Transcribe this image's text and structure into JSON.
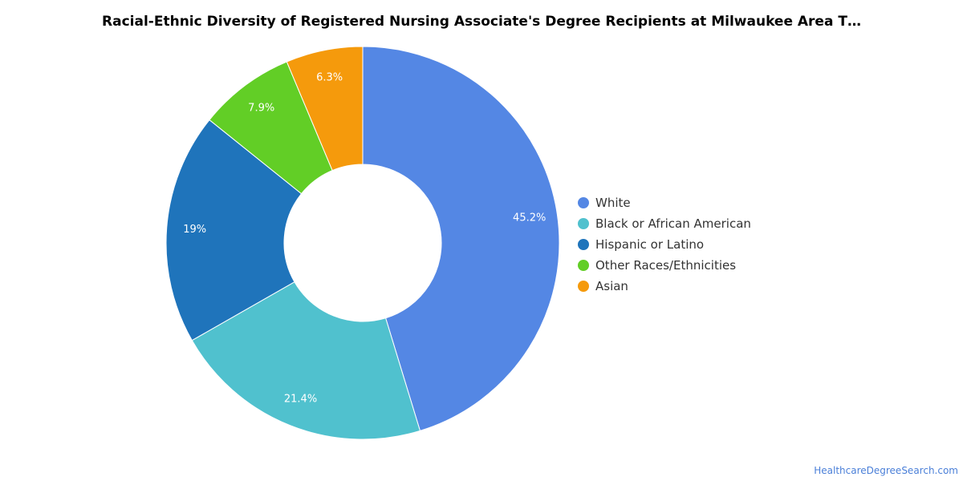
{
  "source_link": "HealthcareDegreeSearch.com",
  "chart_data": {
    "type": "pie",
    "variant": "donut",
    "title": "Racial-Ethnic Diversity of Registered Nursing Associate's Degree Recipients at Milwaukee Area T…",
    "legend_position": "right",
    "series": [
      {
        "name": "White",
        "value": 45.2,
        "label": "45.2%",
        "color": "#5487e4"
      },
      {
        "name": "Black or African American",
        "value": 21.4,
        "label": "21.4%",
        "color": "#50c1ce"
      },
      {
        "name": "Hispanic or Latino",
        "value": 19,
        "label": "19%",
        "color": "#1f74bb"
      },
      {
        "name": "Other Races/Ethnicities",
        "value": 7.9,
        "label": "7.9%",
        "color": "#62ce26"
      },
      {
        "name": "Asian",
        "value": 6.3,
        "label": "6.3%",
        "color": "#f59a0c"
      }
    ]
  }
}
